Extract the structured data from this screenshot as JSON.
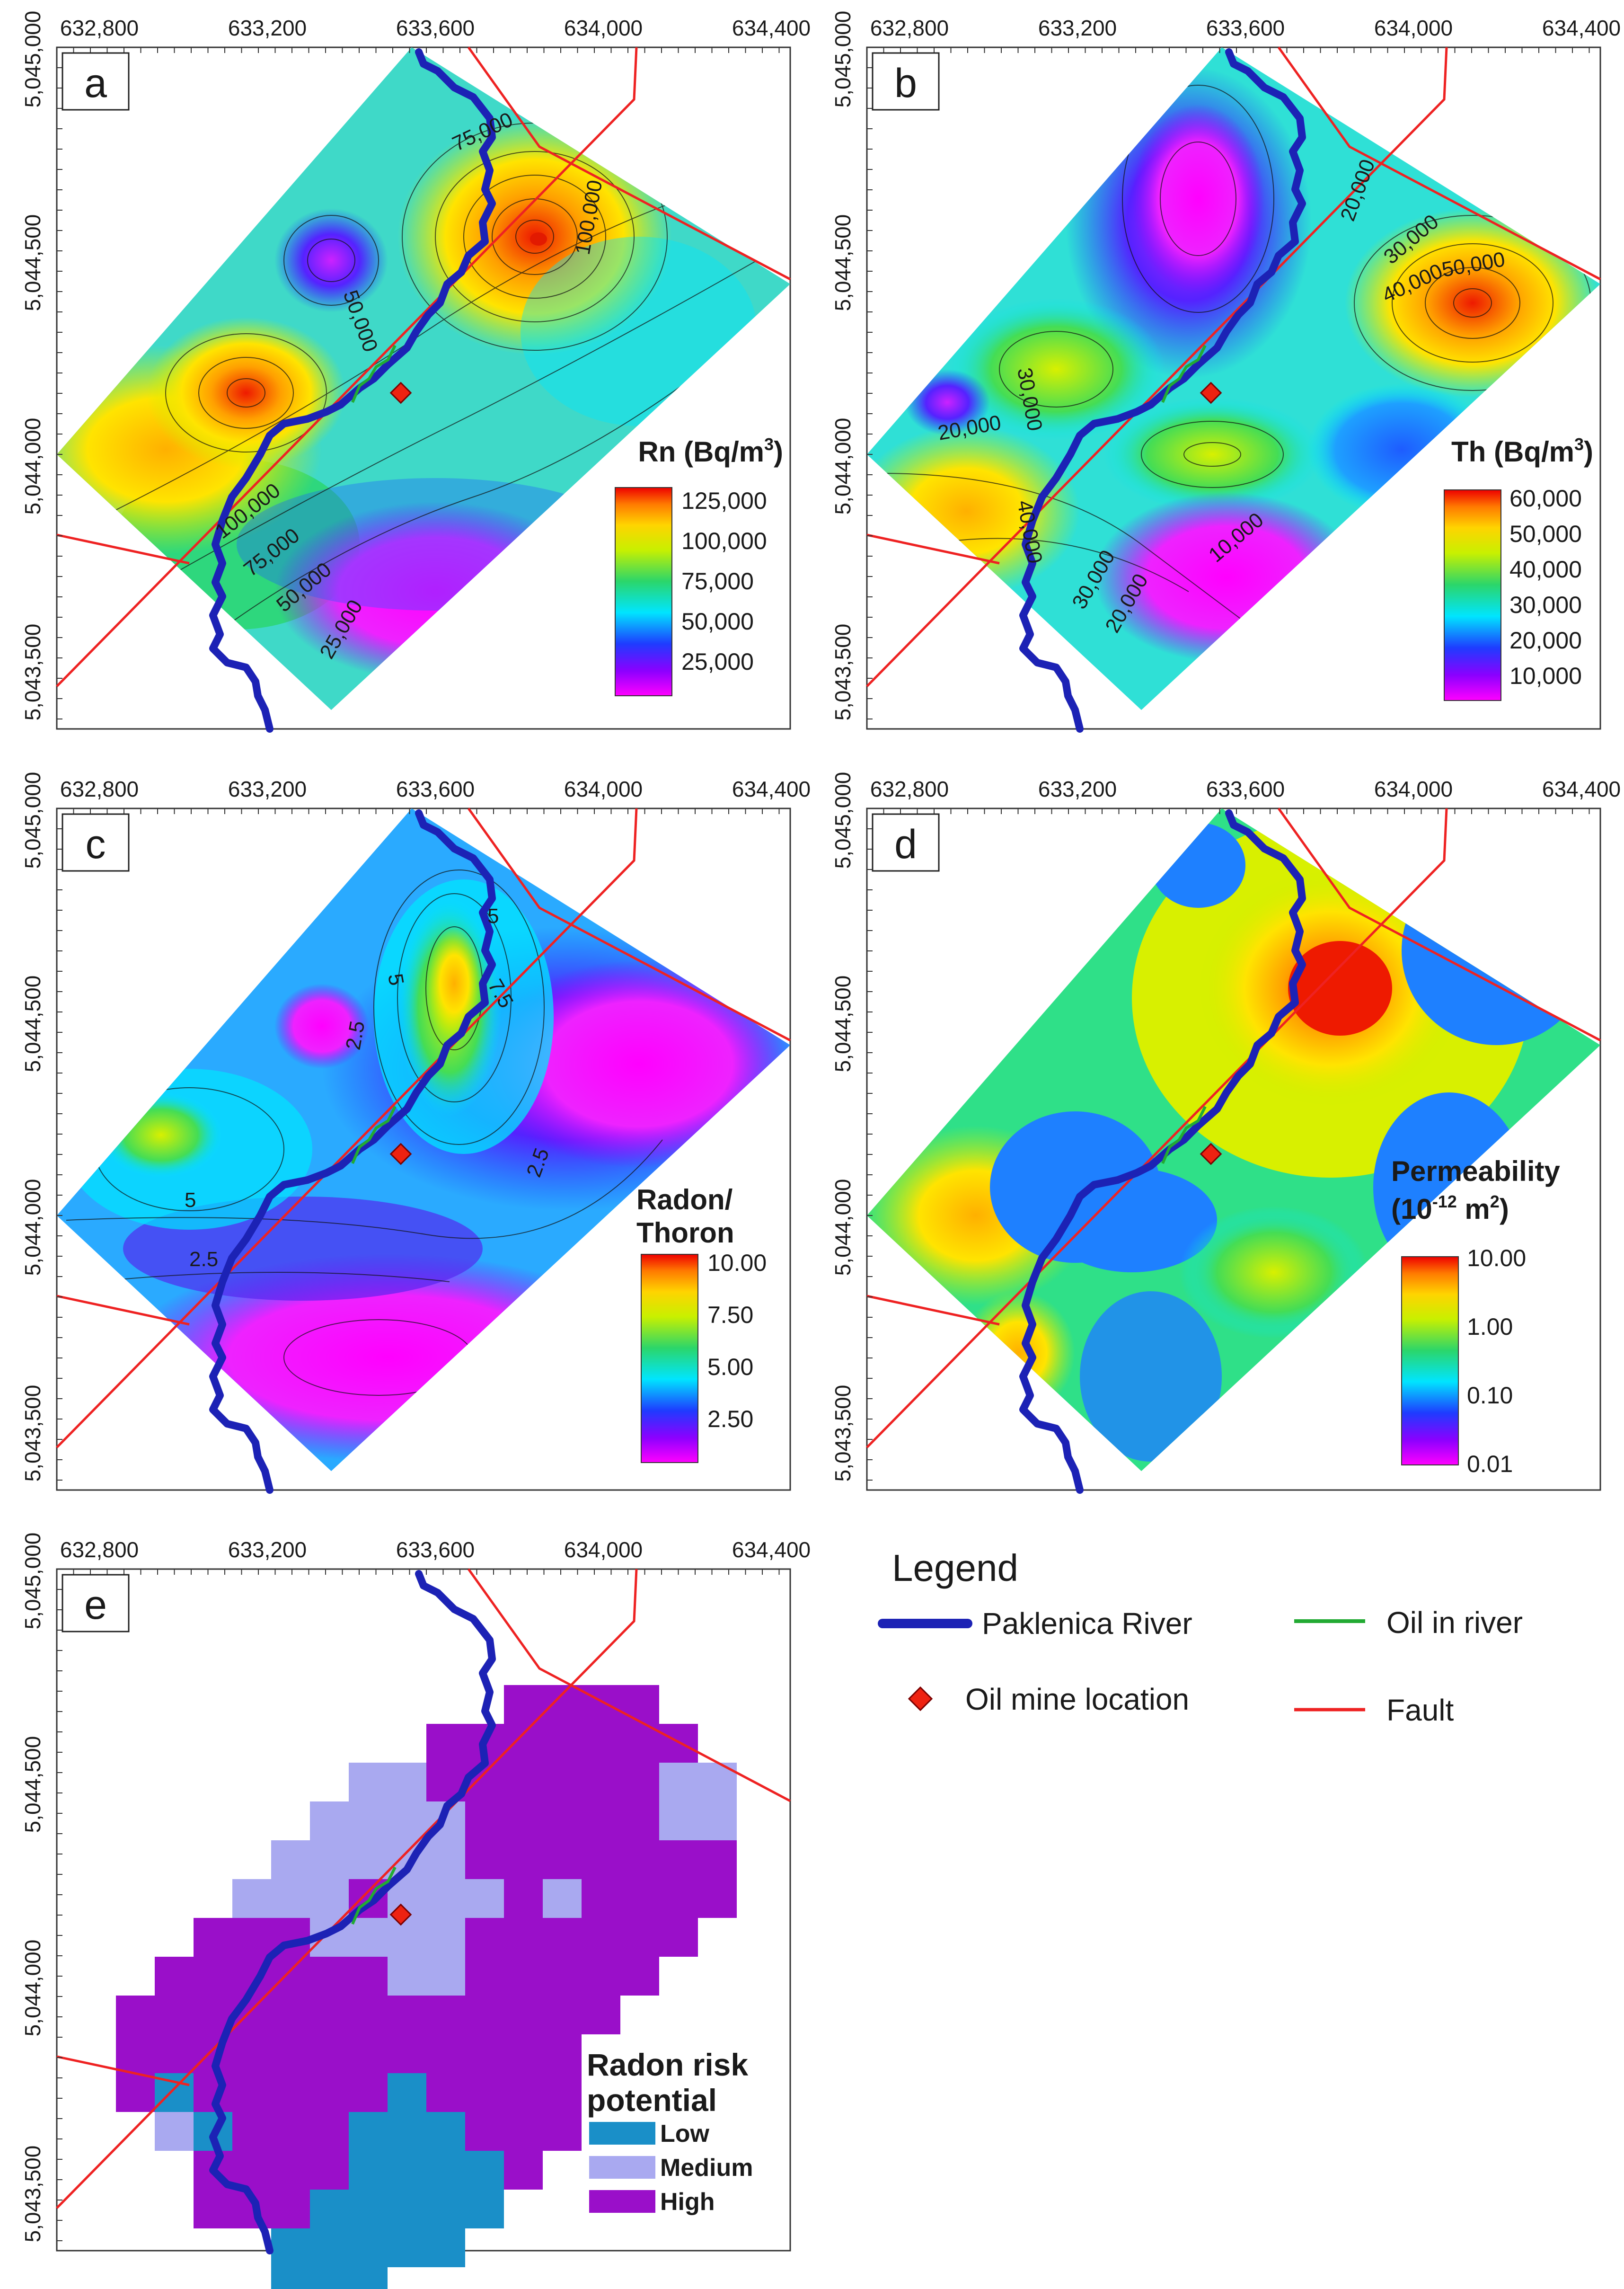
{
  "axes": {
    "x_ticks": [
      "632,800",
      "633,200",
      "633,600",
      "634,000",
      "634,400"
    ],
    "y_ticks": [
      "5,045,000",
      "5,044,500",
      "5,044,000",
      "5,043,500"
    ]
  },
  "panels": [
    {
      "letter": "a",
      "title_lines": [
        "Rn (Bq/m",
        "3",
        ")"
      ],
      "colorbar_ticks": [
        "125,000",
        "100,000",
        "75,000",
        "50,000",
        "25,000"
      ],
      "contour_labels": [
        "75,000",
        "100,000",
        "50,000",
        "100,000",
        "75,000",
        "50,000",
        "25,000"
      ]
    },
    {
      "letter": "b",
      "title_lines": [
        "Th (Bq/m",
        "3",
        ")"
      ],
      "colorbar_ticks": [
        "60,000",
        "50,000",
        "40,000",
        "30,000",
        "20,000",
        "10,000"
      ],
      "contour_labels": [
        "20,000",
        "30,000",
        "40,000",
        "50,000",
        "30,000",
        "20,000",
        "40,000",
        "30,000",
        "20,000",
        "10,000"
      ]
    },
    {
      "letter": "c",
      "title_lines": [
        "Radon/",
        "Thoron"
      ],
      "colorbar_ticks": [
        "10.00",
        "7.50",
        "5.00",
        "2.50"
      ],
      "contour_labels": [
        "5",
        "7.5",
        "5",
        "2.5",
        "5",
        "2.5",
        "2.5"
      ]
    },
    {
      "letter": "d",
      "title_lines": [
        "Permeability",
        "(10",
        "-12",
        " m",
        "2",
        ")"
      ],
      "colorbar_ticks": [
        "10.00",
        "1.00",
        "0.10",
        "0.01"
      ]
    },
    {
      "letter": "e",
      "title_lines": [
        "Radon risk",
        "potential"
      ]
    }
  ],
  "risk": {
    "categories": [
      {
        "label": "Low",
        "color": "#1a8fc8"
      },
      {
        "label": "Medium",
        "color": "#a9a9f0"
      },
      {
        "label": "High",
        "color": "#9a0fc9"
      }
    ]
  },
  "legend": {
    "title": "Legend",
    "river": "Paklenica River",
    "oil_river": "Oil in river",
    "oil_mine": "Oil mine location",
    "fault": "Fault"
  },
  "colors": {
    "river": "#1c22b5",
    "fault": "#ee2222",
    "oil": "#22aa33",
    "mine": "#ee2211"
  }
}
